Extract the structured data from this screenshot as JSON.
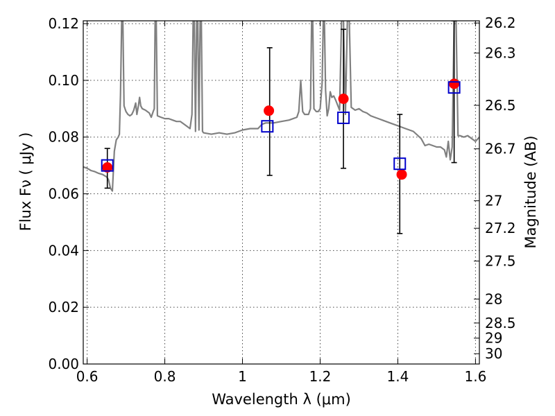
{
  "chart_data": {
    "type": "line",
    "xlabel": "Wavelength  λ (μm)",
    "ylabel": "Flux  Fν  ( μJy )",
    "y2label": "Magnitude (AB)",
    "xlim": [
      0.59,
      1.61
    ],
    "ylim": [
      0.0,
      0.121
    ],
    "grid": true,
    "x_ticks": [
      0.6,
      0.8,
      1.0,
      1.2,
      1.4,
      1.6
    ],
    "x_tick_labels": [
      "0.6",
      "0.8",
      "1",
      "1.2",
      "1.4",
      "1.6"
    ],
    "y_ticks": [
      0.0,
      0.02,
      0.04,
      0.06,
      0.08,
      0.1,
      0.12
    ],
    "y_tick_labels": [
      "0.00",
      "0.02",
      "0.04",
      "0.06",
      "0.08",
      "0.10",
      "0.12"
    ],
    "magnitude_ticks": [
      {
        "label": "26.2",
        "mag": 26.2
      },
      {
        "label": "26.3",
        "mag": 26.3
      },
      {
        "label": "26.5",
        "mag": 26.5
      },
      {
        "label": "26.7",
        "mag": 26.7
      },
      {
        "label": "27",
        "mag": 27.0
      },
      {
        "label": "27.2",
        "mag": 27.2
      },
      {
        "label": "27.5",
        "mag": 27.5
      },
      {
        "label": "28",
        "mag": 28.0
      },
      {
        "label": "28.5",
        "mag": 28.5
      },
      {
        "label": "29",
        "mag": 29.0
      },
      {
        "label": "30",
        "mag": 30.0
      }
    ],
    "series": [
      {
        "type": "line",
        "color": "#808080",
        "points": [
          [
            0.59,
            0.0695
          ],
          [
            0.6,
            0.069
          ],
          [
            0.61,
            0.0682
          ],
          [
            0.62,
            0.0678
          ],
          [
            0.63,
            0.0672
          ],
          [
            0.64,
            0.0668
          ],
          [
            0.645,
            0.0664
          ],
          [
            0.65,
            0.066
          ],
          [
            0.655,
            0.065
          ],
          [
            0.66,
            0.062
          ],
          [
            0.665,
            0.061
          ],
          [
            0.67,
            0.075
          ],
          [
            0.675,
            0.079
          ],
          [
            0.68,
            0.08
          ],
          [
            0.683,
            0.081
          ],
          [
            0.686,
            0.095
          ],
          [
            0.689,
            0.121
          ],
          [
            0.692,
            0.121
          ],
          [
            0.695,
            0.091
          ],
          [
            0.7,
            0.089
          ],
          [
            0.705,
            0.088
          ],
          [
            0.71,
            0.0875
          ],
          [
            0.715,
            0.088
          ],
          [
            0.72,
            0.0895
          ],
          [
            0.725,
            0.092
          ],
          [
            0.728,
            0.088
          ],
          [
            0.732,
            0.091
          ],
          [
            0.735,
            0.094
          ],
          [
            0.738,
            0.091
          ],
          [
            0.742,
            0.09
          ],
          [
            0.75,
            0.0895
          ],
          [
            0.76,
            0.0885
          ],
          [
            0.765,
            0.087
          ],
          [
            0.77,
            0.089
          ],
          [
            0.773,
            0.09
          ],
          [
            0.775,
            0.121
          ],
          [
            0.778,
            0.121
          ],
          [
            0.781,
            0.0875
          ],
          [
            0.79,
            0.087
          ],
          [
            0.8,
            0.0865
          ],
          [
            0.81,
            0.0865
          ],
          [
            0.82,
            0.086
          ],
          [
            0.83,
            0.0855
          ],
          [
            0.84,
            0.0855
          ],
          [
            0.85,
            0.0845
          ],
          [
            0.86,
            0.0835
          ],
          [
            0.865,
            0.083
          ],
          [
            0.87,
            0.088
          ],
          [
            0.873,
            0.121
          ],
          [
            0.876,
            0.121
          ],
          [
            0.879,
            0.082
          ],
          [
            0.882,
            0.121
          ],
          [
            0.885,
            0.121
          ],
          [
            0.888,
            0.0825
          ],
          [
            0.891,
            0.121
          ],
          [
            0.894,
            0.121
          ],
          [
            0.897,
            0.082
          ],
          [
            0.9,
            0.0815
          ],
          [
            0.92,
            0.081
          ],
          [
            0.94,
            0.0815
          ],
          [
            0.96,
            0.081
          ],
          [
            0.98,
            0.0815
          ],
          [
            1.0,
            0.0825
          ],
          [
            1.02,
            0.083
          ],
          [
            1.04,
            0.083
          ],
          [
            1.05,
            0.0845
          ],
          [
            1.06,
            0.085
          ],
          [
            1.08,
            0.085
          ],
          [
            1.1,
            0.0855
          ],
          [
            1.12,
            0.086
          ],
          [
            1.14,
            0.087
          ],
          [
            1.145,
            0.089
          ],
          [
            1.15,
            0.1
          ],
          [
            1.155,
            0.089
          ],
          [
            1.16,
            0.088
          ],
          [
            1.17,
            0.088
          ],
          [
            1.175,
            0.09
          ],
          [
            1.178,
            0.121
          ],
          [
            1.181,
            0.121
          ],
          [
            1.184,
            0.09
          ],
          [
            1.19,
            0.089
          ],
          [
            1.195,
            0.089
          ],
          [
            1.2,
            0.09
          ],
          [
            1.205,
            0.099
          ],
          [
            1.208,
            0.121
          ],
          [
            1.211,
            0.121
          ],
          [
            1.214,
            0.0965
          ],
          [
            1.218,
            0.0875
          ],
          [
            1.222,
            0.09
          ],
          [
            1.226,
            0.096
          ],
          [
            1.23,
            0.094
          ],
          [
            1.235,
            0.0945
          ],
          [
            1.24,
            0.093
          ],
          [
            1.25,
            0.0895
          ],
          [
            1.255,
            0.121
          ],
          [
            1.26,
            0.121
          ],
          [
            1.265,
            0.088
          ],
          [
            1.27,
            0.121
          ],
          [
            1.275,
            0.121
          ],
          [
            1.28,
            0.0905
          ],
          [
            1.29,
            0.0895
          ],
          [
            1.3,
            0.09
          ],
          [
            1.31,
            0.089
          ],
          [
            1.32,
            0.0885
          ],
          [
            1.33,
            0.0875
          ],
          [
            1.34,
            0.087
          ],
          [
            1.35,
            0.0865
          ],
          [
            1.36,
            0.086
          ],
          [
            1.38,
            0.085
          ],
          [
            1.4,
            0.084
          ],
          [
            1.42,
            0.083
          ],
          [
            1.44,
            0.082
          ],
          [
            1.46,
            0.0795
          ],
          [
            1.47,
            0.077
          ],
          [
            1.48,
            0.0775
          ],
          [
            1.49,
            0.077
          ],
          [
            1.5,
            0.0765
          ],
          [
            1.51,
            0.0765
          ],
          [
            1.52,
            0.0755
          ],
          [
            1.525,
            0.073
          ],
          [
            1.53,
            0.0785
          ],
          [
            1.535,
            0.072
          ],
          [
            1.54,
            0.0765
          ],
          [
            1.545,
            0.121
          ],
          [
            1.55,
            0.121
          ],
          [
            1.555,
            0.0805
          ],
          [
            1.56,
            0.0805
          ],
          [
            1.57,
            0.08
          ],
          [
            1.58,
            0.0805
          ],
          [
            1.59,
            0.0795
          ],
          [
            1.6,
            0.0785
          ],
          [
            1.61,
            0.08
          ]
        ]
      },
      {
        "type": "errorbar",
        "color": "#000000",
        "points": [
          {
            "x": 0.652,
            "low": 0.062,
            "high": 0.076
          },
          {
            "x": 1.07,
            "low": 0.0665,
            "high": 0.1115
          },
          {
            "x": 1.26,
            "low": 0.069,
            "high": 0.118
          },
          {
            "x": 1.405,
            "low": 0.046,
            "high": 0.088
          },
          {
            "x": 1.545,
            "low": 0.071,
            "high": 0.121
          }
        ]
      },
      {
        "type": "scatter",
        "marker": "circle",
        "color": "#ff0000",
        "points": [
          [
            0.652,
            0.0693
          ],
          [
            1.068,
            0.0893
          ],
          [
            1.26,
            0.0935
          ],
          [
            1.41,
            0.0668
          ],
          [
            1.545,
            0.0988
          ]
        ]
      },
      {
        "type": "scatter",
        "marker": "square",
        "color": "#0000cc",
        "points": [
          [
            0.652,
            0.07
          ],
          [
            1.064,
            0.0838
          ],
          [
            1.26,
            0.0868
          ],
          [
            1.405,
            0.0706
          ],
          [
            1.545,
            0.0975
          ]
        ]
      }
    ]
  }
}
